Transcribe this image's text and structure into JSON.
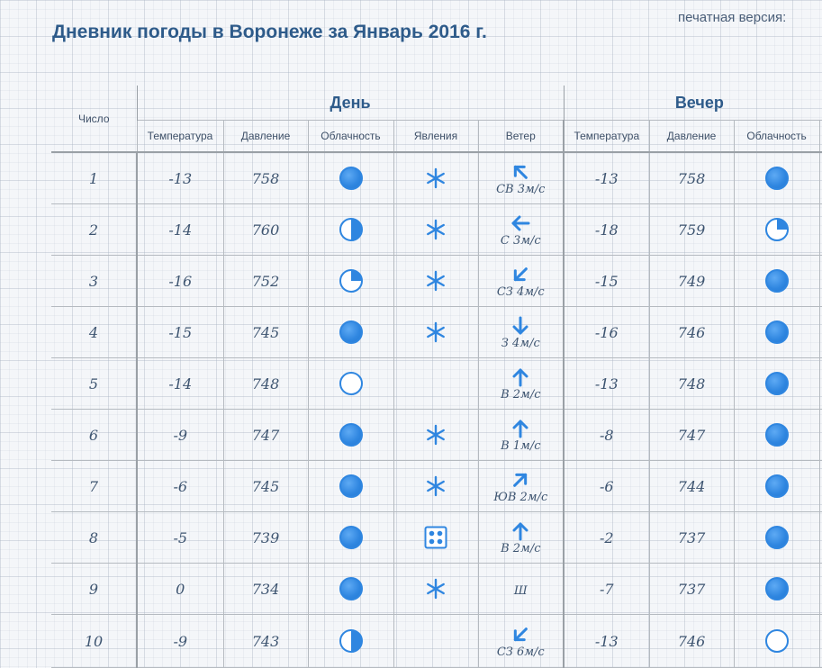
{
  "header": {
    "title": "Дневник погоды в Воронеже за Январь 2016 г.",
    "print_link": "печатная версия:"
  },
  "table": {
    "groups": {
      "day": "День",
      "evening": "Вечер"
    },
    "col_number": "Число",
    "columns": {
      "temperature": "Температура",
      "pressure": "Давление",
      "cloudiness": "Облачность",
      "phenomena": "Явления",
      "wind": "Ветер"
    },
    "rows": [
      {
        "date": "1",
        "day": {
          "temp": "-13",
          "pressure": "758",
          "cloud": "full",
          "phen": "snow",
          "wind": "СВ 3м/с",
          "wind_dir": 225
        },
        "evening": {
          "temp": "-13",
          "pressure": "758",
          "cloud": "full"
        }
      },
      {
        "date": "2",
        "day": {
          "temp": "-14",
          "pressure": "760",
          "cloud": "half",
          "phen": "snow",
          "wind": "С 3м/с",
          "wind_dir": 180
        },
        "evening": {
          "temp": "-18",
          "pressure": "759",
          "cloud": "quarter"
        }
      },
      {
        "date": "3",
        "day": {
          "temp": "-16",
          "pressure": "752",
          "cloud": "quarter",
          "phen": "snow",
          "wind": "СЗ 4м/с",
          "wind_dir": 135
        },
        "evening": {
          "temp": "-15",
          "pressure": "749",
          "cloud": "full"
        }
      },
      {
        "date": "4",
        "day": {
          "temp": "-15",
          "pressure": "745",
          "cloud": "full",
          "phen": "snow",
          "wind": "З 4м/с",
          "wind_dir": 90
        },
        "evening": {
          "temp": "-16",
          "pressure": "746",
          "cloud": "full"
        }
      },
      {
        "date": "5",
        "day": {
          "temp": "-14",
          "pressure": "748",
          "cloud": "clear",
          "phen": "",
          "wind": "В 2м/с",
          "wind_dir": 270
        },
        "evening": {
          "temp": "-13",
          "pressure": "748",
          "cloud": "full"
        }
      },
      {
        "date": "6",
        "day": {
          "temp": "-9",
          "pressure": "747",
          "cloud": "full",
          "phen": "snow",
          "wind": "В 1м/с",
          "wind_dir": 270
        },
        "evening": {
          "temp": "-8",
          "pressure": "747",
          "cloud": "full"
        }
      },
      {
        "date": "7",
        "day": {
          "temp": "-6",
          "pressure": "745",
          "cloud": "full",
          "phen": "snow",
          "wind": "ЮВ 2м/с",
          "wind_dir": 315
        },
        "evening": {
          "temp": "-6",
          "pressure": "744",
          "cloud": "full"
        }
      },
      {
        "date": "8",
        "day": {
          "temp": "-5",
          "pressure": "739",
          "cloud": "full",
          "phen": "hail",
          "wind": "В 2м/с",
          "wind_dir": 270
        },
        "evening": {
          "temp": "-2",
          "pressure": "737",
          "cloud": "full"
        }
      },
      {
        "date": "9",
        "day": {
          "temp": "0",
          "pressure": "734",
          "cloud": "full",
          "phen": "snow",
          "wind": "Ш",
          "wind_dir": null
        },
        "evening": {
          "temp": "-7",
          "pressure": "737",
          "cloud": "full"
        }
      },
      {
        "date": "10",
        "day": {
          "temp": "-9",
          "pressure": "743",
          "cloud": "half",
          "phen": "",
          "wind": "СЗ 6м/с",
          "wind_dir": 135
        },
        "evening": {
          "temp": "-13",
          "pressure": "746",
          "cloud": "clear"
        }
      }
    ]
  },
  "icons": {
    "cloud_full": "overcast-circle-icon",
    "cloud_half": "partly-cloudy-half-icon",
    "cloud_quarter": "mostly-clear-quarter-icon",
    "cloud_clear": "clear-sky-circle-icon",
    "snow": "snowflake-icon",
    "hail": "hail-dice-icon",
    "wind": "wind-arrow-icon"
  },
  "colors": {
    "accent": "#2f86e0",
    "title": "#2e5b8a",
    "text": "#3d5470",
    "border": "#b5bac0"
  }
}
